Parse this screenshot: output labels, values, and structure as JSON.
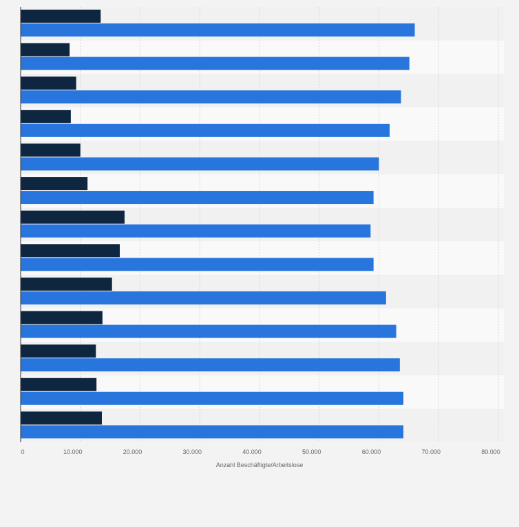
{
  "chart_data": {
    "type": "bar",
    "orientation": "horizontal",
    "xlabel": "Anzahl Beschäftigte/Arbeitslose",
    "xlim": [
      0,
      80000
    ],
    "xticks": [
      0,
      10000,
      20000,
      30000,
      40000,
      50000,
      60000,
      70000,
      80000
    ],
    "xtick_labels": [
      "0",
      "10.000",
      "20.000",
      "30.000",
      "40.000",
      "50.000",
      "60.000",
      "70.000",
      "80.000"
    ],
    "grid": true,
    "legend": "none visible",
    "categories": [
      "",
      "",
      "",
      "",
      "",
      "",
      "",
      "",
      "",
      "",
      "",
      "",
      ""
    ],
    "series": [
      {
        "color": "#0f2640",
        "values": [
          13400,
          8200,
          9300,
          8400,
          10000,
          11200,
          17400,
          16600,
          15300,
          13700,
          12600,
          12700,
          13600
        ]
      },
      {
        "color": "#2876dd",
        "values": [
          66000,
          65100,
          63700,
          61800,
          60000,
          59100,
          58600,
          59100,
          61200,
          62900,
          63500,
          64100,
          64100
        ]
      }
    ]
  },
  "colors": {
    "background": "#f3f3f3",
    "band_light": "#f9f9f9",
    "band_dark": "#f1f1f1",
    "grid": "#d6d6d6",
    "axis": "#333333",
    "tick_text": "#666666"
  }
}
